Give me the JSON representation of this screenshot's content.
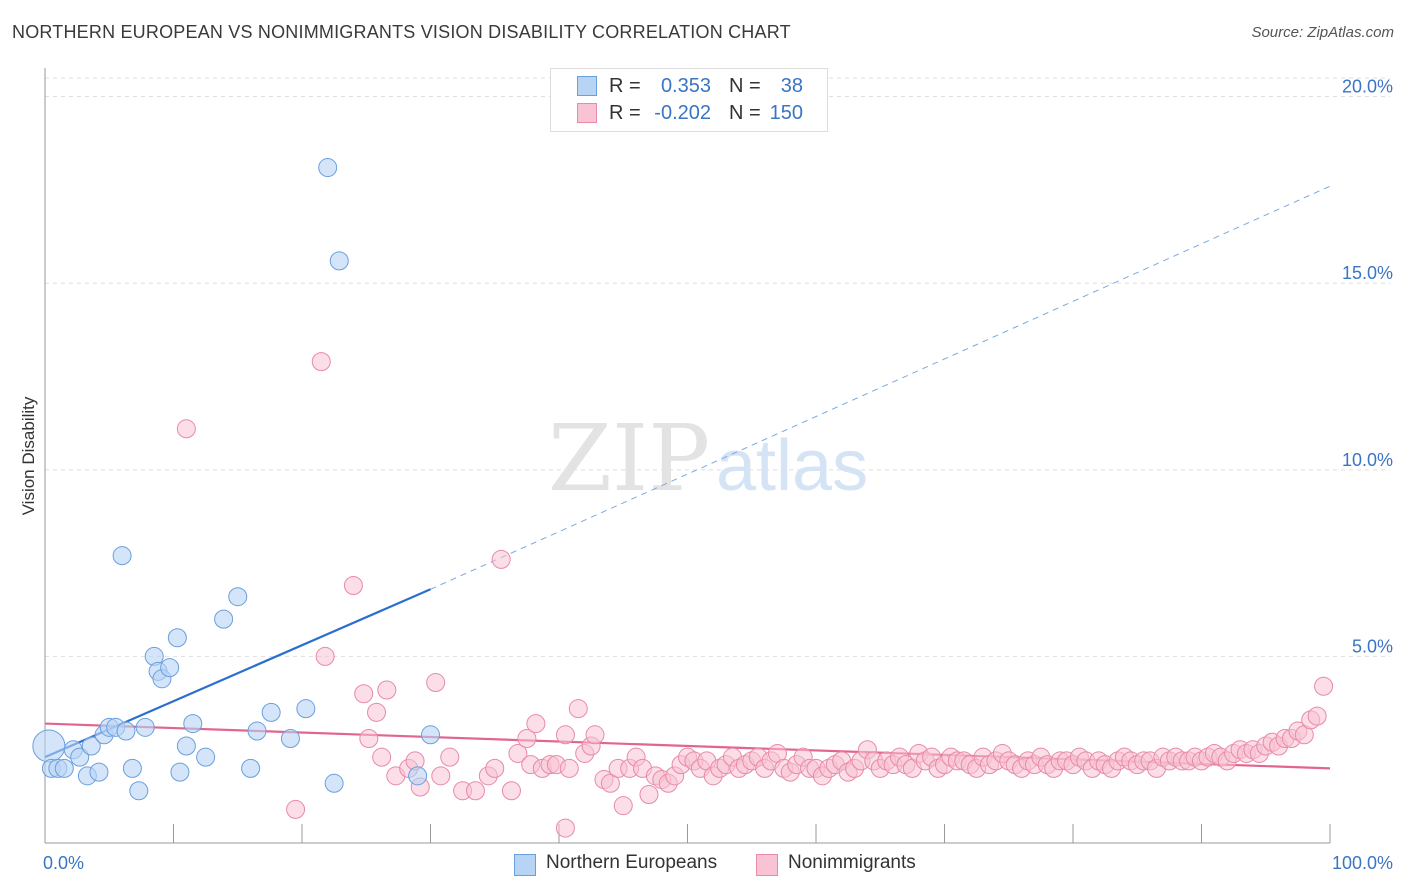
{
  "title": "NORTHERN EUROPEAN VS NONIMMIGRANTS VISION DISABILITY CORRELATION CHART",
  "source": "Source: ZipAtlas.com",
  "watermark": {
    "zip": "ZIP",
    "atlas": "atlas"
  },
  "legend": {
    "rows": [
      {
        "r_label": "R =",
        "r_value": "0.353",
        "n_label": "N =",
        "n_value": "38"
      },
      {
        "r_label": "R =",
        "r_value": "-0.202",
        "n_label": "N =",
        "n_value": "150"
      }
    ]
  },
  "chart_data": {
    "type": "scatter",
    "ylabel": "Vision Disability",
    "xlabel": "",
    "xlim": [
      0,
      100
    ],
    "ylim": [
      0,
      20.5
    ],
    "x_tick_labels": [
      {
        "value": 0,
        "label": "0.0%"
      },
      {
        "value": 100,
        "label": "100.0%"
      }
    ],
    "y_tick_labels": [
      {
        "value": 5,
        "label": "5.0%"
      },
      {
        "value": 10,
        "label": "10.0%"
      },
      {
        "value": 15,
        "label": "15.0%"
      },
      {
        "value": 20,
        "label": "20.0%"
      }
    ],
    "colors": {
      "blue_fill": "#b8d4f5",
      "blue_stroke": "#6a9fdd",
      "blue_line": "#2a6fcf",
      "pink_fill": "#f8c3d3",
      "pink_stroke": "#e88aa8",
      "pink_line": "#e2658f",
      "axis_label": "#3a75c4",
      "grid": "#dddddd"
    },
    "series": [
      {
        "name": "Northern Europeans",
        "trend": {
          "x0": 0,
          "y0": 2.3,
          "x1": 30,
          "y1": 6.8,
          "dash_to_x": 100,
          "dash_to_y": 17.6
        },
        "points": [
          {
            "x": 0.3,
            "y": 2.6,
            "big": true
          },
          {
            "x": 0.5,
            "y": 2.0
          },
          {
            "x": 1.0,
            "y": 2.0
          },
          {
            "x": 1.5,
            "y": 2.0
          },
          {
            "x": 2.2,
            "y": 2.5
          },
          {
            "x": 2.7,
            "y": 2.3
          },
          {
            "x": 3.3,
            "y": 1.8
          },
          {
            "x": 3.6,
            "y": 2.6
          },
          {
            "x": 4.2,
            "y": 1.9
          },
          {
            "x": 4.6,
            "y": 2.9
          },
          {
            "x": 5.0,
            "y": 3.1
          },
          {
            "x": 5.5,
            "y": 3.1
          },
          {
            "x": 6.0,
            "y": 7.7
          },
          {
            "x": 6.3,
            "y": 3.0
          },
          {
            "x": 6.8,
            "y": 2.0
          },
          {
            "x": 7.3,
            "y": 1.4
          },
          {
            "x": 7.8,
            "y": 3.1
          },
          {
            "x": 8.5,
            "y": 5.0
          },
          {
            "x": 8.8,
            "y": 4.6
          },
          {
            "x": 9.1,
            "y": 4.4
          },
          {
            "x": 9.7,
            "y": 4.7
          },
          {
            "x": 10.3,
            "y": 5.5
          },
          {
            "x": 10.5,
            "y": 1.9
          },
          {
            "x": 11.0,
            "y": 2.6
          },
          {
            "x": 11.5,
            "y": 3.2
          },
          {
            "x": 12.5,
            "y": 2.3
          },
          {
            "x": 13.9,
            "y": 6.0
          },
          {
            "x": 15.0,
            "y": 6.6
          },
          {
            "x": 16.0,
            "y": 2.0
          },
          {
            "x": 16.5,
            "y": 3.0
          },
          {
            "x": 17.6,
            "y": 3.5
          },
          {
            "x": 19.1,
            "y": 2.8
          },
          {
            "x": 20.3,
            "y": 3.6
          },
          {
            "x": 22.0,
            "y": 18.1
          },
          {
            "x": 22.5,
            "y": 1.6
          },
          {
            "x": 22.9,
            "y": 15.6
          },
          {
            "x": 29.0,
            "y": 1.8
          },
          {
            "x": 30.0,
            "y": 2.9
          }
        ]
      },
      {
        "name": "Nonimmigrants",
        "trend": {
          "x0": 0,
          "y0": 3.2,
          "x1": 100,
          "y1": 2.0
        },
        "points": [
          {
            "x": 11.0,
            "y": 11.1
          },
          {
            "x": 21.5,
            "y": 12.9
          },
          {
            "x": 19.5,
            "y": 0.9
          },
          {
            "x": 21.8,
            "y": 5.0
          },
          {
            "x": 24.0,
            "y": 6.9
          },
          {
            "x": 24.8,
            "y": 4.0
          },
          {
            "x": 25.2,
            "y": 2.8
          },
          {
            "x": 25.8,
            "y": 3.5
          },
          {
            "x": 26.2,
            "y": 2.3
          },
          {
            "x": 26.6,
            "y": 4.1
          },
          {
            "x": 27.3,
            "y": 1.8
          },
          {
            "x": 28.3,
            "y": 2.0
          },
          {
            "x": 28.8,
            "y": 2.2
          },
          {
            "x": 29.2,
            "y": 1.5
          },
          {
            "x": 30.4,
            "y": 4.3
          },
          {
            "x": 30.8,
            "y": 1.8
          },
          {
            "x": 31.5,
            "y": 2.3
          },
          {
            "x": 32.5,
            "y": 1.4
          },
          {
            "x": 33.5,
            "y": 1.4
          },
          {
            "x": 34.5,
            "y": 1.8
          },
          {
            "x": 35.0,
            "y": 2.0
          },
          {
            "x": 35.5,
            "y": 7.6
          },
          {
            "x": 36.3,
            "y": 1.4
          },
          {
            "x": 36.8,
            "y": 2.4
          },
          {
            "x": 37.5,
            "y": 2.8
          },
          {
            "x": 37.8,
            "y": 2.1
          },
          {
            "x": 38.2,
            "y": 3.2
          },
          {
            "x": 38.7,
            "y": 2.0
          },
          {
            "x": 39.3,
            "y": 2.1
          },
          {
            "x": 39.8,
            "y": 2.1
          },
          {
            "x": 40.5,
            "y": 2.9
          },
          {
            "x": 40.8,
            "y": 2.0
          },
          {
            "x": 40.5,
            "y": 0.4
          },
          {
            "x": 41.5,
            "y": 3.6
          },
          {
            "x": 42.0,
            "y": 2.4
          },
          {
            "x": 42.5,
            "y": 2.6
          },
          {
            "x": 42.8,
            "y": 2.9
          },
          {
            "x": 43.5,
            "y": 1.7
          },
          {
            "x": 44.0,
            "y": 1.6
          },
          {
            "x": 44.6,
            "y": 2.0
          },
          {
            "x": 45.0,
            "y": 1.0
          },
          {
            "x": 45.5,
            "y": 2.0
          },
          {
            "x": 46.0,
            "y": 2.3
          },
          {
            "x": 46.5,
            "y": 2.0
          },
          {
            "x": 47.0,
            "y": 1.3
          },
          {
            "x": 47.5,
            "y": 1.8
          },
          {
            "x": 48.0,
            "y": 1.7
          },
          {
            "x": 48.5,
            "y": 1.6
          },
          {
            "x": 49.0,
            "y": 1.8
          },
          {
            "x": 49.5,
            "y": 2.1
          },
          {
            "x": 50.0,
            "y": 2.3
          },
          {
            "x": 50.5,
            "y": 2.2
          },
          {
            "x": 51.0,
            "y": 2.0
          },
          {
            "x": 51.5,
            "y": 2.2
          },
          {
            "x": 52.0,
            "y": 1.8
          },
          {
            "x": 52.5,
            "y": 2.0
          },
          {
            "x": 53.0,
            "y": 2.1
          },
          {
            "x": 53.5,
            "y": 2.3
          },
          {
            "x": 54.0,
            "y": 2.0
          },
          {
            "x": 54.5,
            "y": 2.1
          },
          {
            "x": 55.0,
            "y": 2.2
          },
          {
            "x": 55.5,
            "y": 2.3
          },
          {
            "x": 56.0,
            "y": 2.0
          },
          {
            "x": 56.5,
            "y": 2.2
          },
          {
            "x": 57.0,
            "y": 2.4
          },
          {
            "x": 57.5,
            "y": 2.0
          },
          {
            "x": 58.0,
            "y": 1.9
          },
          {
            "x": 58.5,
            "y": 2.1
          },
          {
            "x": 59.0,
            "y": 2.3
          },
          {
            "x": 59.5,
            "y": 2.0
          },
          {
            "x": 60.0,
            "y": 2.0
          },
          {
            "x": 60.5,
            "y": 1.8
          },
          {
            "x": 61.0,
            "y": 2.0
          },
          {
            "x": 61.5,
            "y": 2.1
          },
          {
            "x": 62.0,
            "y": 2.2
          },
          {
            "x": 62.5,
            "y": 1.9
          },
          {
            "x": 63.0,
            "y": 2.0
          },
          {
            "x": 63.5,
            "y": 2.2
          },
          {
            "x": 64.0,
            "y": 2.5
          },
          {
            "x": 64.5,
            "y": 2.2
          },
          {
            "x": 65.0,
            "y": 2.0
          },
          {
            "x": 65.5,
            "y": 2.2
          },
          {
            "x": 66.0,
            "y": 2.1
          },
          {
            "x": 66.5,
            "y": 2.3
          },
          {
            "x": 67.0,
            "y": 2.1
          },
          {
            "x": 67.5,
            "y": 2.0
          },
          {
            "x": 68.0,
            "y": 2.4
          },
          {
            "x": 68.5,
            "y": 2.2
          },
          {
            "x": 69.0,
            "y": 2.3
          },
          {
            "x": 69.5,
            "y": 2.0
          },
          {
            "x": 70.0,
            "y": 2.1
          },
          {
            "x": 70.5,
            "y": 2.3
          },
          {
            "x": 71.0,
            "y": 2.2
          },
          {
            "x": 71.5,
            "y": 2.2
          },
          {
            "x": 72.0,
            "y": 2.1
          },
          {
            "x": 72.5,
            "y": 2.0
          },
          {
            "x": 73.0,
            "y": 2.3
          },
          {
            "x": 73.5,
            "y": 2.1
          },
          {
            "x": 74.0,
            "y": 2.2
          },
          {
            "x": 74.5,
            "y": 2.4
          },
          {
            "x": 75.0,
            "y": 2.2
          },
          {
            "x": 75.5,
            "y": 2.1
          },
          {
            "x": 76.0,
            "y": 2.0
          },
          {
            "x": 76.5,
            "y": 2.2
          },
          {
            "x": 77.0,
            "y": 2.1
          },
          {
            "x": 77.5,
            "y": 2.3
          },
          {
            "x": 78.0,
            "y": 2.1
          },
          {
            "x": 78.5,
            "y": 2.0
          },
          {
            "x": 79.0,
            "y": 2.2
          },
          {
            "x": 79.5,
            "y": 2.2
          },
          {
            "x": 80.0,
            "y": 2.1
          },
          {
            "x": 80.5,
            "y": 2.3
          },
          {
            "x": 81.0,
            "y": 2.2
          },
          {
            "x": 81.5,
            "y": 2.0
          },
          {
            "x": 82.0,
            "y": 2.2
          },
          {
            "x": 82.5,
            "y": 2.1
          },
          {
            "x": 83.0,
            "y": 2.0
          },
          {
            "x": 83.5,
            "y": 2.2
          },
          {
            "x": 84.0,
            "y": 2.3
          },
          {
            "x": 84.5,
            "y": 2.2
          },
          {
            "x": 85.0,
            "y": 2.1
          },
          {
            "x": 85.5,
            "y": 2.2
          },
          {
            "x": 86.0,
            "y": 2.2
          },
          {
            "x": 86.5,
            "y": 2.0
          },
          {
            "x": 87.0,
            "y": 2.3
          },
          {
            "x": 87.5,
            "y": 2.2
          },
          {
            "x": 88.0,
            "y": 2.3
          },
          {
            "x": 88.5,
            "y": 2.2
          },
          {
            "x": 89.0,
            "y": 2.2
          },
          {
            "x": 89.5,
            "y": 2.3
          },
          {
            "x": 90.0,
            "y": 2.2
          },
          {
            "x": 90.5,
            "y": 2.3
          },
          {
            "x": 91.0,
            "y": 2.4
          },
          {
            "x": 91.5,
            "y": 2.3
          },
          {
            "x": 92.0,
            "y": 2.2
          },
          {
            "x": 92.5,
            "y": 2.4
          },
          {
            "x": 93.0,
            "y": 2.5
          },
          {
            "x": 93.5,
            "y": 2.4
          },
          {
            "x": 94.0,
            "y": 2.5
          },
          {
            "x": 94.5,
            "y": 2.4
          },
          {
            "x": 95.0,
            "y": 2.6
          },
          {
            "x": 95.5,
            "y": 2.7
          },
          {
            "x": 96.0,
            "y": 2.6
          },
          {
            "x": 96.5,
            "y": 2.8
          },
          {
            "x": 97.0,
            "y": 2.8
          },
          {
            "x": 97.5,
            "y": 3.0
          },
          {
            "x": 98.0,
            "y": 2.9
          },
          {
            "x": 98.5,
            "y": 3.3
          },
          {
            "x": 99.0,
            "y": 3.4
          },
          {
            "x": 99.5,
            "y": 4.2
          }
        ]
      }
    ]
  },
  "bottom_legend": [
    {
      "label": "Northern Europeans"
    },
    {
      "label": "Nonimmigrants"
    }
  ]
}
